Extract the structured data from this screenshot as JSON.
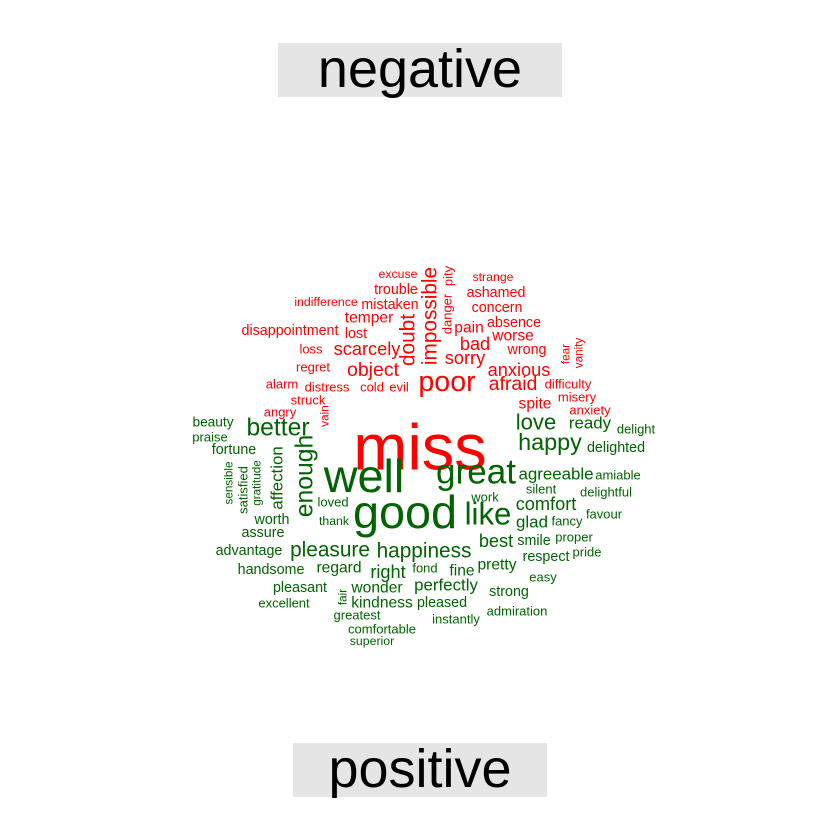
{
  "chart_data": {
    "type": "comparison wordcloud",
    "title": "",
    "groups": [
      {
        "name": "negative",
        "color": "#ff0000",
        "words": [
          {
            "word": "miss",
            "size": 5
          },
          {
            "word": "poor",
            "size": 2.2
          },
          {
            "word": "impossible",
            "size": 1.6
          },
          {
            "word": "doubt",
            "size": 1.6
          },
          {
            "word": "afraid",
            "size": 1.5
          },
          {
            "word": "object",
            "size": 1.5
          },
          {
            "word": "scarcely",
            "size": 1.4
          },
          {
            "word": "sorry",
            "size": 1.4
          },
          {
            "word": "anxious",
            "size": 1.4
          },
          {
            "word": "bad",
            "size": 1.4
          },
          {
            "word": "worse",
            "size": 1.2
          },
          {
            "word": "pain",
            "size": 1.2
          },
          {
            "word": "temper",
            "size": 1.2
          },
          {
            "word": "spite",
            "size": 1.2
          },
          {
            "word": "absence",
            "size": 1.1
          },
          {
            "word": "wrong",
            "size": 1.1
          },
          {
            "word": "ashamed",
            "size": 1.1
          },
          {
            "word": "concern",
            "size": 1.1
          },
          {
            "word": "trouble",
            "size": 1.1
          },
          {
            "word": "mistaken",
            "size": 1.1
          },
          {
            "word": "lost",
            "size": 1.1
          },
          {
            "word": "disappointment",
            "size": 1.1
          },
          {
            "word": "loss",
            "size": 1
          },
          {
            "word": "regret",
            "size": 1
          },
          {
            "word": "alarm",
            "size": 1
          },
          {
            "word": "distress",
            "size": 1
          },
          {
            "word": "cold",
            "size": 1
          },
          {
            "word": "evil",
            "size": 1
          },
          {
            "word": "struck",
            "size": 1
          },
          {
            "word": "angry",
            "size": 1
          },
          {
            "word": "vain",
            "size": 0.9
          },
          {
            "word": "difficulty",
            "size": 1
          },
          {
            "word": "misery",
            "size": 1
          },
          {
            "word": "anxiety",
            "size": 1
          },
          {
            "word": "fear",
            "size": 0.9
          },
          {
            "word": "vanity",
            "size": 0.9
          },
          {
            "word": "danger",
            "size": 1
          },
          {
            "word": "pity",
            "size": 1
          },
          {
            "word": "strange",
            "size": 0.95
          },
          {
            "word": "excuse",
            "size": 0.95
          },
          {
            "word": "indifference",
            "size": 0.95
          }
        ]
      },
      {
        "name": "positive",
        "color": "#006400",
        "words": [
          {
            "word": "good",
            "size": 3.6
          },
          {
            "word": "well",
            "size": 3.6
          },
          {
            "word": "great",
            "size": 2.7
          },
          {
            "word": "like",
            "size": 2.4
          },
          {
            "word": "enough",
            "size": 1.9
          },
          {
            "word": "better",
            "size": 1.9
          },
          {
            "word": "happy",
            "size": 1.8
          },
          {
            "word": "love",
            "size": 1.7
          },
          {
            "word": "pleasure",
            "size": 1.6
          },
          {
            "word": "happiness",
            "size": 1.6
          },
          {
            "word": "best",
            "size": 1.4
          },
          {
            "word": "comfort",
            "size": 1.4
          },
          {
            "word": "right",
            "size": 1.4
          },
          {
            "word": "agreeable",
            "size": 1.3
          },
          {
            "word": "glad",
            "size": 1.3
          },
          {
            "word": "perfectly",
            "size": 1.3
          },
          {
            "word": "affection",
            "size": 1.3
          },
          {
            "word": "ready",
            "size": 1.3
          },
          {
            "word": "pretty",
            "size": 1.2
          },
          {
            "word": "regard",
            "size": 1.2
          },
          {
            "word": "wonder",
            "size": 1.2
          },
          {
            "word": "kindness",
            "size": 1.2
          },
          {
            "word": "fine",
            "size": 1.2
          },
          {
            "word": "fortune",
            "size": 1.1
          },
          {
            "word": "delighted",
            "size": 1.1
          },
          {
            "word": "assure",
            "size": 1.1
          },
          {
            "word": "worth",
            "size": 1.1
          },
          {
            "word": "advantage",
            "size": 1.1
          },
          {
            "word": "handsome",
            "size": 1.1
          },
          {
            "word": "respect",
            "size": 1.1
          },
          {
            "word": "smile",
            "size": 1.1
          },
          {
            "word": "strong",
            "size": 1.1
          },
          {
            "word": "pleased",
            "size": 1.1
          },
          {
            "word": "pleasant",
            "size": 1.1
          },
          {
            "word": "beauty",
            "size": 1.05
          },
          {
            "word": "praise",
            "size": 1
          },
          {
            "word": "sensible",
            "size": 0.9
          },
          {
            "word": "satisfied",
            "size": 1
          },
          {
            "word": "gratitude",
            "size": 0.9
          },
          {
            "word": "loved",
            "size": 1
          },
          {
            "word": "thank",
            "size": 0.95
          },
          {
            "word": "work",
            "size": 1
          },
          {
            "word": "silent",
            "size": 1
          },
          {
            "word": "fancy",
            "size": 1
          },
          {
            "word": "proper",
            "size": 1
          },
          {
            "word": "amiable",
            "size": 1
          },
          {
            "word": "delightful",
            "size": 1
          },
          {
            "word": "favour",
            "size": 1
          },
          {
            "word": "delight",
            "size": 1
          },
          {
            "word": "pride",
            "size": 1
          },
          {
            "word": "easy",
            "size": 1
          },
          {
            "word": "fond",
            "size": 1
          },
          {
            "word": "excellent",
            "size": 1
          },
          {
            "word": "fair",
            "size": 0.9
          },
          {
            "word": "greatest",
            "size": 1
          },
          {
            "word": "admiration",
            "size": 1
          },
          {
            "word": "instantly",
            "size": 1
          },
          {
            "word": "comfortable",
            "size": 1
          },
          {
            "word": "superior",
            "size": 0.95
          }
        ]
      }
    ],
    "legend": "group labels top and bottom"
  }
}
